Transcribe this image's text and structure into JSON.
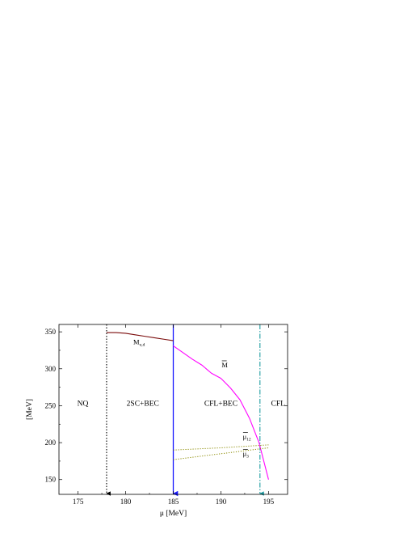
{
  "chart_data": {
    "type": "line",
    "xlabel": "μ [MeV]",
    "ylabel": "[MeV]",
    "xlim": [
      173,
      197
    ],
    "ylim": [
      130,
      360
    ],
    "xticks": [
      175,
      180,
      185,
      190,
      195
    ],
    "yticks": [
      150,
      200,
      250,
      300,
      350
    ],
    "grid": false,
    "series": [
      {
        "name": "M_u,d",
        "color": "#7a0a0a",
        "style": "solid",
        "x": [
          178,
          179,
          180,
          181,
          182,
          183,
          184,
          185
        ],
        "y": [
          349,
          349,
          348,
          346,
          344,
          342,
          340,
          338
        ]
      },
      {
        "name": "M̄",
        "color": "#ff00ff",
        "style": "solid",
        "x": [
          185,
          186,
          187,
          188,
          189,
          190,
          191,
          192,
          193,
          194,
          194.5,
          195
        ],
        "y": [
          331,
          322,
          313,
          305,
          294,
          287,
          274,
          258,
          233,
          200,
          175,
          150
        ]
      },
      {
        "name": "μ̄12",
        "color": "#8a8a00",
        "style": "dotted",
        "x": [
          185,
          190,
          195
        ],
        "y": [
          190,
          193,
          197
        ]
      },
      {
        "name": "μ̄3",
        "color": "#8a8a00",
        "style": "dotted",
        "x": [
          185,
          190,
          195
        ],
        "y": [
          177,
          185,
          193
        ]
      }
    ],
    "vlines": [
      {
        "x": 178,
        "color": "#000000",
        "style": "dotted",
        "arrow": "down"
      },
      {
        "x": 185,
        "color": "#1a1aff",
        "style": "solid",
        "arrow": "down"
      },
      {
        "x": 194.1,
        "color": "#1a9aa0",
        "style": "dash-dot",
        "arrow": "down"
      }
    ],
    "labels": {
      "region_nq": "NQ",
      "region_2sc": "2SC+BEC",
      "region_cflbec": "CFL+BEC",
      "region_cfl": "CFL",
      "m_main": "M",
      "m_sub": "u,d",
      "mbar": "M",
      "mu_main": "μ",
      "mu12_sub": "12",
      "mu3_sub": "3"
    },
    "annotations": {
      "region_nq": [
        175.5,
        250
      ],
      "region_2sc": [
        181.8,
        250
      ],
      "region_cflbec": [
        190,
        250
      ],
      "region_cfl": [
        196,
        250
      ],
      "m_ud": [
        180.8,
        333
      ],
      "mbar": [
        190.4,
        302
      ],
      "mu12": [
        192.3,
        205
      ],
      "mu3": [
        192.3,
        182
      ]
    }
  }
}
